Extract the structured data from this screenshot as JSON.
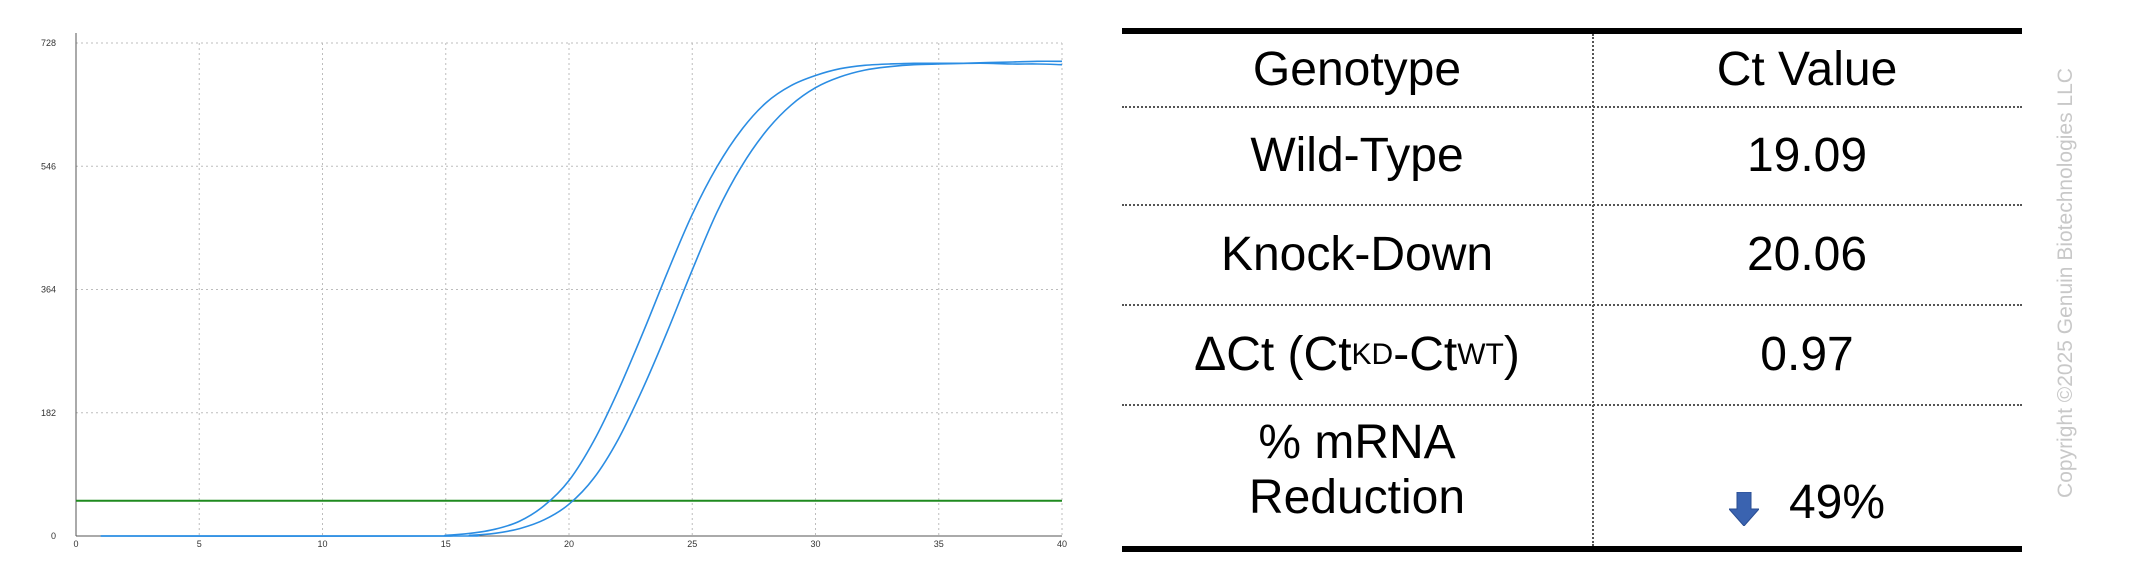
{
  "chart_data": {
    "type": "line",
    "title": "",
    "xlabel": "",
    "ylabel": "",
    "xlim": [
      0,
      40
    ],
    "ylim": [
      0,
      728
    ],
    "x_ticks": [
      0,
      5,
      10,
      15,
      20,
      25,
      30,
      35,
      40
    ],
    "y_ticks": [
      0,
      182,
      364,
      546,
      728
    ],
    "grid": true,
    "series": [
      {
        "color": "#2b8de3",
        "x": [
          1,
          14,
          15,
          16,
          17,
          18,
          19,
          20,
          21,
          22,
          23,
          24,
          25,
          26,
          27,
          28,
          29,
          30,
          31,
          32,
          33,
          34,
          35,
          36,
          37,
          38,
          39,
          40
        ],
        "y": [
          0,
          0,
          1,
          4,
          10,
          22,
          45,
          82,
          140,
          215,
          300,
          390,
          475,
          545,
          600,
          640,
          665,
          680,
          690,
          695,
          697,
          698,
          698,
          698,
          698,
          697,
          697,
          696
        ]
      },
      {
        "color": "#2b8de3",
        "x": [
          1,
          15,
          16,
          17,
          18,
          19,
          20,
          21,
          22,
          23,
          24,
          25,
          26,
          27,
          28,
          29,
          30,
          31,
          32,
          33,
          34,
          35,
          36,
          37,
          38,
          39,
          40
        ],
        "y": [
          0,
          0,
          1,
          4,
          11,
          24,
          47,
          85,
          143,
          218,
          303,
          393,
          478,
          546,
          598,
          636,
          662,
          678,
          688,
          693,
          696,
          697,
          698,
          699,
          700,
          701,
          701
        ]
      }
    ],
    "threshold": {
      "y": 52,
      "color": "#1f8a1f"
    }
  },
  "table": {
    "header": {
      "genotype": "Genotype",
      "ct_value": "Ct Value"
    },
    "rows": {
      "wild_type": {
        "label": "Wild-Type",
        "value": "19.09"
      },
      "knock_down": {
        "label": "Knock-Down",
        "value": "20.06"
      },
      "delta_ct": {
        "delta": "ΔCt (Ct",
        "sub_kd": "KD",
        "dash": "-Ct",
        "sub_wt": "WT",
        "close": ")",
        "value": "0.97"
      },
      "reduction": {
        "label_line1": "% mRNA",
        "label_line2": "Reduction",
        "value": "49%"
      }
    },
    "arrow_icon": "down-arrow-icon",
    "arrow_color": "#3a63b0"
  },
  "copyright": "Copyright ©2025 Genuin Biotechnologies LLC"
}
